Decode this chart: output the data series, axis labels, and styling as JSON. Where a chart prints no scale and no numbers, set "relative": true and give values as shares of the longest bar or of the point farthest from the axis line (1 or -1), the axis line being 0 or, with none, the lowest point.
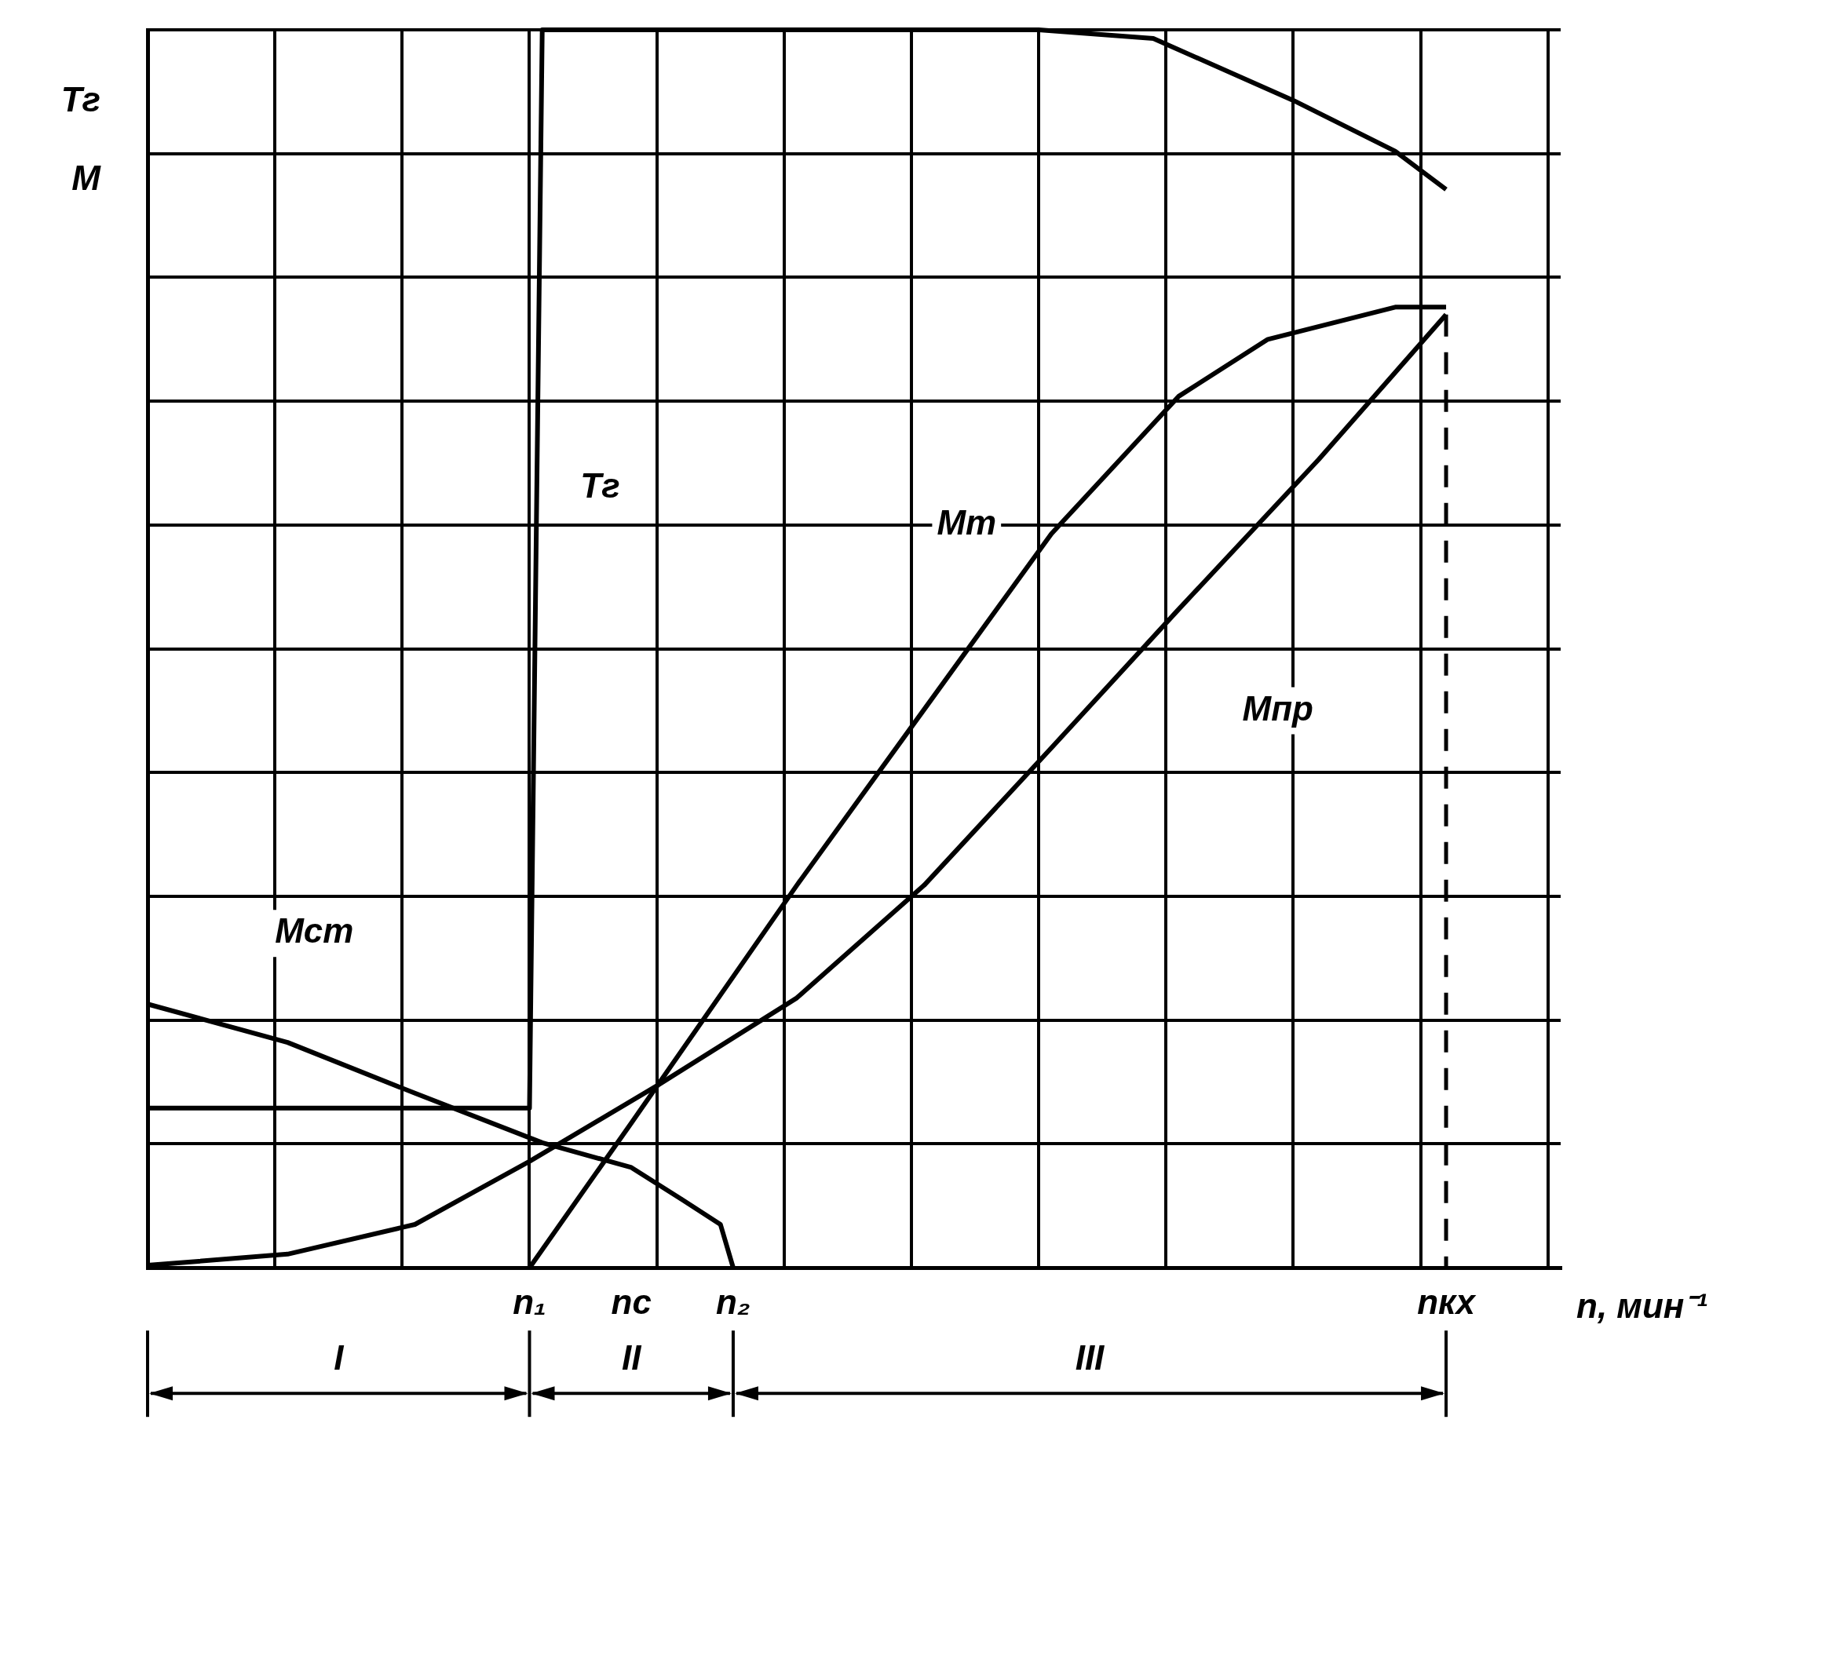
{
  "chart_data": {
    "type": "line",
    "relative": true,
    "xlabel": "n, мин⁻¹",
    "ylabel": "Tг\nM",
    "categories": [
      null,
      null,
      null,
      null,
      null,
      null,
      null,
      null,
      null,
      null,
      null,
      null,
      null,
      null,
      null,
      null,
      null,
      null,
      null,
      null,
      null,
      null,
      null,
      null,
      null,
      null,
      null,
      null,
      null,
      null,
      "n₁",
      null,
      null,
      null,
      null,
      null,
      null,
      null,
      "nс",
      null,
      null,
      null,
      null,
      null,
      null,
      null,
      "n₂",
      null,
      null,
      null,
      null,
      null,
      null,
      null,
      null,
      null,
      null,
      null,
      null,
      null,
      null,
      null,
      null,
      null,
      null,
      null,
      null,
      null,
      null,
      null,
      null,
      null,
      null,
      null,
      null,
      null,
      null,
      null,
      null,
      null,
      null,
      null,
      null,
      null,
      null,
      null,
      null,
      null,
      null,
      null,
      null,
      null,
      null,
      null,
      null,
      null,
      null,
      null,
      null,
      null,
      null,
      null,
      "nкх",
      null,
      null,
      null,
      null,
      null,
      null,
      null,
      null,
      null
    ],
    "grid": true,
    "legend": false,
    "marker": "none",
    "line_style": "solid",
    "ref_lines": [
      {
        "axis": "x",
        "value": "nкх",
        "line_style": "dashed",
        "color": "#000000"
      }
    ],
    "annotations": [
      "I",
      "II",
      "III"
    ],
    "series": [
      {
        "name": "Tг",
        "color": "#000000",
        "values": [
          0.129,
          null,
          null,
          null,
          null,
          null,
          null,
          null,
          null,
          null,
          null,
          null,
          null,
          null,
          null,
          null,
          null,
          null,
          null,
          null,
          null,
          null,
          null,
          null,
          null,
          null,
          null,
          null,
          null,
          null,
          0.129,
          1,
          null,
          null,
          null,
          null,
          null,
          null,
          null,
          null,
          null,
          null,
          null,
          null,
          null,
          null,
          null,
          null,
          null,
          null,
          null,
          null,
          null,
          null,
          null,
          null,
          null,
          null,
          null,
          null,
          null,
          null,
          null,
          null,
          null,
          null,
          null,
          null,
          null,
          null,
          1,
          null,
          null,
          null,
          null,
          null,
          null,
          null,
          null,
          0.993,
          null,
          null,
          null,
          null,
          null,
          null,
          null,
          null,
          null,
          null,
          0.943,
          null,
          null,
          null,
          null,
          null,
          null,
          null,
          0.902,
          null,
          null,
          null,
          0.871,
          null,
          null,
          null,
          null,
          null,
          null,
          null,
          null,
          null
        ]
      },
      {
        "name": "Mт",
        "color": "#000000",
        "values": [
          null,
          null,
          null,
          null,
          null,
          null,
          null,
          null,
          null,
          null,
          null,
          null,
          null,
          null,
          null,
          null,
          null,
          null,
          null,
          null,
          null,
          null,
          null,
          null,
          null,
          null,
          null,
          null,
          null,
          null,
          0,
          null,
          null,
          null,
          null,
          null,
          null,
          null,
          0.117,
          null,
          null,
          null,
          null,
          null,
          null,
          null,
          null,
          null,
          null,
          null,
          null,
          0.309,
          null,
          null,
          null,
          null,
          null,
          null,
          null,
          null,
          null,
          0.451,
          null,
          null,
          null,
          null,
          null,
          null,
          null,
          null,
          null,
          0.593,
          null,
          null,
          null,
          null,
          null,
          null,
          null,
          null,
          null,
          0.704,
          null,
          null,
          null,
          null,
          null,
          null,
          0.75,
          null,
          null,
          null,
          null,
          null,
          null,
          null,
          null,
          null,
          0.776,
          null,
          null,
          null,
          0.776,
          null,
          null,
          null,
          null,
          null,
          null,
          null,
          null,
          null
        ]
      },
      {
        "name": "Mпр",
        "color": "#000000",
        "values": [
          0.002,
          null,
          null,
          null,
          null,
          null,
          null,
          null,
          null,
          null,
          null,
          0.011,
          null,
          null,
          null,
          null,
          null,
          null,
          null,
          null,
          null,
          0.035,
          null,
          null,
          null,
          null,
          null,
          null,
          null,
          null,
          0.086,
          null,
          null,
          null,
          null,
          null,
          null,
          null,
          null,
          null,
          0.147,
          null,
          null,
          null,
          null,
          null,
          null,
          null,
          null,
          null,
          null,
          0.218,
          null,
          null,
          null,
          null,
          null,
          null,
          null,
          null,
          null,
          0.309,
          null,
          null,
          null,
          null,
          null,
          null,
          null,
          null,
          null,
          0.42,
          null,
          null,
          null,
          null,
          null,
          null,
          null,
          null,
          null,
          0.532,
          null,
          null,
          null,
          null,
          null,
          null,
          null,
          null,
          null,
          null,
          0.653,
          null,
          null,
          null,
          null,
          null,
          null,
          null,
          null,
          null,
          0.77,
          null,
          null,
          null,
          null,
          null,
          null,
          null,
          null,
          null
        ]
      },
      {
        "name": "Mст",
        "color": "#000000",
        "values": [
          0.213,
          null,
          null,
          null,
          null,
          null,
          null,
          null,
          null,
          null,
          null,
          0.182,
          null,
          null,
          null,
          null,
          null,
          null,
          null,
          null,
          null,
          0.141,
          null,
          null,
          null,
          null,
          null,
          null,
          null,
          null,
          null,
          0.101,
          null,
          null,
          null,
          null,
          null,
          null,
          0.081,
          null,
          null,
          null,
          0.055,
          null,
          null,
          0.035,
          0,
          null,
          null,
          null,
          null,
          null,
          null,
          null,
          null,
          null,
          null,
          null,
          null,
          null,
          null,
          null,
          null,
          null,
          null,
          null,
          null,
          null,
          null,
          null,
          null,
          null,
          null,
          null,
          null,
          null,
          null,
          null,
          null,
          null,
          null,
          null,
          null,
          null,
          null,
          null,
          null,
          null,
          null,
          null,
          null,
          null,
          null,
          null,
          null,
          null,
          null,
          null,
          null,
          null,
          null,
          null,
          null,
          null,
          null,
          null,
          null,
          null,
          null,
          null,
          null,
          null
        ]
      }
    ]
  }
}
